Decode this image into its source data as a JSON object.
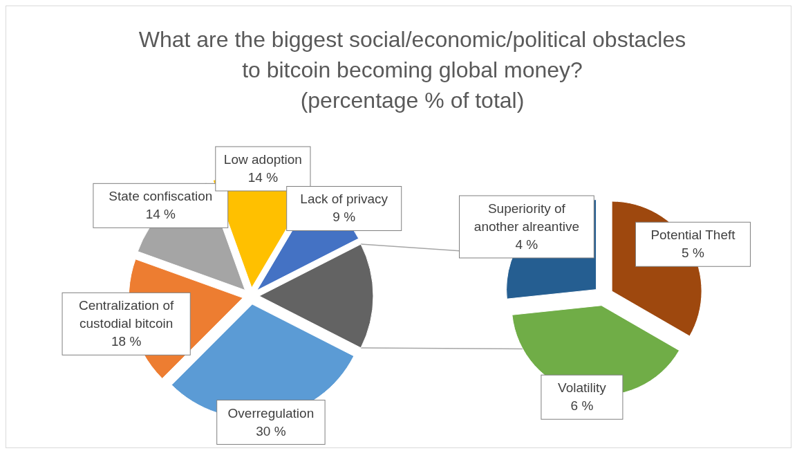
{
  "chart_data": [
    {
      "type": "pie",
      "title": "What are the biggest social/economic/political obstacles\nto bitcoin becoming global money?\n(percentage % of total)",
      "categories": [
        null,
        "Overregulation",
        "Centralization of custodial bitcoin",
        "State confiscation",
        "Low adoption",
        "Lack of privacy"
      ],
      "values": [
        15,
        30,
        18,
        14,
        14,
        9
      ],
      "colors": [
        "#636363",
        "#5b9bd5",
        "#ed7d31",
        "#a5a5a5",
        "#ffc000",
        "#4472c4"
      ],
      "value_labels": [
        null,
        "30 %",
        "18 %",
        "14 %",
        "14 %",
        "9 %"
      ]
    },
    {
      "type": "pie",
      "categories": [
        "Superiority of another alreantive",
        "Potential Theft",
        "Volatility"
      ],
      "values": [
        4,
        5,
        6
      ],
      "colors": [
        "#255e91",
        "#9e480e",
        "#70ad47"
      ],
      "value_labels": [
        "4 %",
        "5 %",
        "6 %"
      ]
    }
  ]
}
